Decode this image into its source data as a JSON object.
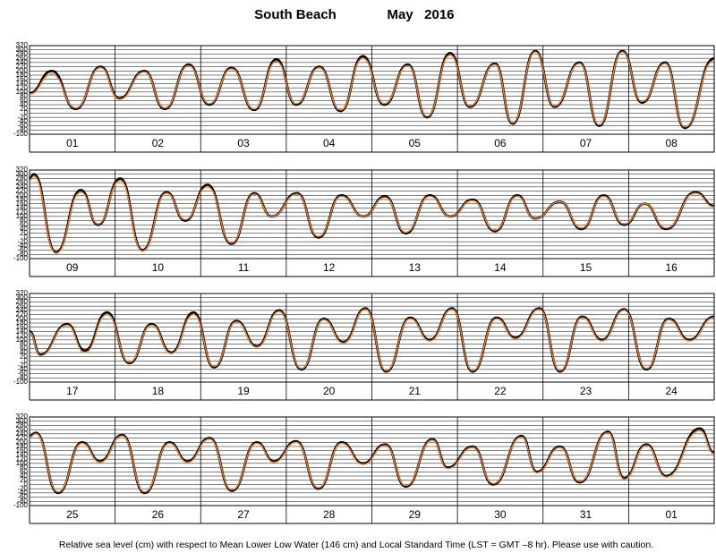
{
  "title": "South Beach",
  "title_date": "May   2016",
  "note": "Relative sea level (cm) with respect to Mean Lower Low Water (146 cm) and Local Standard Time (LST = GMT –8 hr). Please use with caution.",
  "chart_data": [
    {
      "type": "line",
      "grid": true,
      "day_labels": [
        "01",
        "02",
        "03",
        "04",
        "05",
        "06",
        "07",
        "08"
      ],
      "xlim": [
        0,
        8
      ],
      "xticks": [
        1,
        2,
        3,
        4,
        5,
        6,
        7
      ],
      "ylim": [
        -100,
        320
      ],
      "yticks": [
        -100,
        -80,
        -60,
        -40,
        -20,
        0,
        20,
        40,
        60,
        80,
        100,
        120,
        140,
        160,
        180,
        200,
        220,
        240,
        260,
        280,
        300,
        320
      ],
      "x": [
        0,
        0.26,
        0.54,
        0.83,
        1.05,
        1.34,
        1.58,
        1.86,
        2.1,
        2.36,
        2.625,
        2.885,
        3.115,
        3.385,
        3.635,
        3.895,
        4.145,
        4.42,
        4.645,
        4.915,
        5.145,
        5.44,
        5.645,
        5.91,
        6.135,
        6.427,
        6.656,
        6.927,
        7.156,
        7.427,
        7.656,
        8
      ],
      "series": [
        {
          "color": "#000000",
          "values": [
            95,
            200,
            20,
            220,
            70,
            200,
            20,
            230,
            40,
            215,
            15,
            255,
            40,
            220,
            10,
            270,
            40,
            230,
            -20,
            285,
            30,
            235,
            -50,
            295,
            30,
            240,
            -60,
            295,
            50,
            240,
            -70,
            260
          ]
        },
        {
          "color": "#e8813a",
          "values": [
            90,
            185,
            25,
            215,
            65,
            195,
            25,
            225,
            45,
            210,
            20,
            245,
            45,
            215,
            15,
            260,
            45,
            225,
            -15,
            275,
            35,
            230,
            -45,
            290,
            35,
            235,
            -55,
            290,
            55,
            235,
            -65,
            250
          ]
        }
      ]
    },
    {
      "type": "line",
      "grid": true,
      "day_labels": [
        "09",
        "10",
        "11",
        "12",
        "13",
        "14",
        "15",
        "16"
      ],
      "xlim": [
        0,
        8
      ],
      "xticks": [
        1,
        2,
        3,
        4,
        5,
        6,
        7
      ],
      "ylim": [
        -100,
        320
      ],
      "yticks": [
        -100,
        -80,
        -60,
        -40,
        -20,
        0,
        20,
        40,
        60,
        80,
        100,
        120,
        140,
        160,
        180,
        200,
        220,
        240,
        260,
        280,
        300,
        320
      ],
      "x": [
        0,
        0.05,
        0.31,
        0.6,
        0.8,
        1.06,
        1.32,
        1.6,
        1.82,
        2.08,
        2.36,
        2.625,
        2.83,
        3.125,
        3.375,
        3.645,
        3.9,
        4.155,
        4.396,
        4.677,
        4.917,
        5.177,
        5.438,
        5.698,
        5.906,
        6.198,
        6.448,
        6.708,
        6.948,
        7.188,
        7.438,
        7.78,
        8
      ],
      "series": [
        {
          "color": "#000000",
          "values": [
            280,
            300,
            -70,
            225,
            60,
            280,
            -60,
            215,
            80,
            250,
            -30,
            210,
            100,
            210,
            0,
            200,
            100,
            195,
            20,
            200,
            100,
            180,
            30,
            200,
            90,
            170,
            40,
            200,
            60,
            160,
            40,
            215,
            150
          ]
        },
        {
          "color": "#e8813a",
          "values": [
            270,
            290,
            -75,
            215,
            65,
            270,
            -65,
            210,
            85,
            240,
            -25,
            205,
            100,
            205,
            5,
            195,
            100,
            190,
            25,
            195,
            100,
            175,
            35,
            195,
            90,
            170,
            45,
            195,
            65,
            160,
            45,
            210,
            145
          ]
        }
      ]
    },
    {
      "type": "line",
      "grid": true,
      "day_labels": [
        "17",
        "18",
        "19",
        "20",
        "21",
        "22",
        "23",
        "24"
      ],
      "xlim": [
        0,
        8
      ],
      "xticks": [
        1,
        2,
        3,
        4,
        5,
        6,
        7
      ],
      "ylim": [
        -100,
        320
      ],
      "yticks": [
        -100,
        -80,
        -60,
        -40,
        -20,
        0,
        20,
        40,
        60,
        80,
        100,
        120,
        140,
        160,
        180,
        200,
        220,
        240,
        260,
        280,
        300,
        320
      ],
      "x": [
        0,
        0.125,
        0.44,
        0.646,
        0.906,
        1.167,
        1.427,
        1.656,
        1.917,
        2.156,
        2.417,
        2.656,
        2.917,
        3.177,
        3.438,
        3.667,
        3.927,
        4.167,
        4.448,
        4.677,
        4.938,
        5.177,
        5.458,
        5.677,
        5.958,
        6.198,
        6.458,
        6.688,
        6.948,
        7.208,
        7.469,
        7.708,
        8
      ],
      "series": [
        {
          "color": "#000000",
          "values": [
            140,
            30,
            175,
            50,
            230,
            -10,
            175,
            40,
            230,
            -30,
            190,
            70,
            240,
            -40,
            200,
            90,
            250,
            -50,
            205,
            100,
            250,
            -50,
            205,
            110,
            250,
            -50,
            210,
            100,
            245,
            -40,
            200,
            100,
            210
          ]
        },
        {
          "color": "#e8813a",
          "values": [
            135,
            25,
            170,
            40,
            220,
            -5,
            170,
            35,
            220,
            -25,
            185,
            65,
            235,
            -35,
            195,
            85,
            245,
            -45,
            200,
            95,
            245,
            -45,
            200,
            105,
            245,
            -45,
            205,
            95,
            240,
            -35,
            195,
            95,
            205
          ]
        }
      ]
    },
    {
      "type": "line",
      "grid": true,
      "day_labels": [
        "25",
        "26",
        "27",
        "28",
        "29",
        "30",
        "31",
        "01"
      ],
      "xlim": [
        0,
        8
      ],
      "xticks": [
        1,
        2,
        3,
        4,
        5,
        6,
        7
      ],
      "ylim": [
        -100,
        320
      ],
      "yticks": [
        -100,
        -80,
        -60,
        -40,
        -20,
        0,
        20,
        40,
        60,
        80,
        100,
        120,
        140,
        160,
        180,
        200,
        220,
        240,
        260,
        280,
        300,
        320
      ],
      "x": [
        0,
        0.073,
        0.333,
        0.615,
        0.823,
        1.083,
        1.344,
        1.635,
        1.844,
        2.104,
        2.365,
        2.656,
        2.854,
        3.115,
        3.375,
        3.646,
        3.896,
        4.156,
        4.396,
        4.708,
        4.885,
        5.177,
        5.417,
        5.75,
        5.927,
        6.198,
        6.427,
        6.76,
        6.948,
        7.208,
        7.438,
        7.833,
        8
      ],
      "series": [
        {
          "color": "#000000",
          "values": [
            230,
            245,
            -40,
            200,
            110,
            235,
            -40,
            200,
            110,
            220,
            -30,
            200,
            110,
            205,
            -20,
            200,
            100,
            190,
            -10,
            215,
            80,
            180,
            0,
            230,
            60,
            180,
            10,
            250,
            30,
            190,
            40,
            265,
            150
          ]
        },
        {
          "color": "#e8813a",
          "values": [
            225,
            240,
            -35,
            195,
            105,
            230,
            -35,
            195,
            105,
            215,
            -25,
            195,
            105,
            200,
            -15,
            195,
            95,
            185,
            -5,
            210,
            75,
            175,
            5,
            225,
            55,
            175,
            15,
            245,
            25,
            185,
            35,
            255,
            145
          ]
        }
      ]
    }
  ]
}
